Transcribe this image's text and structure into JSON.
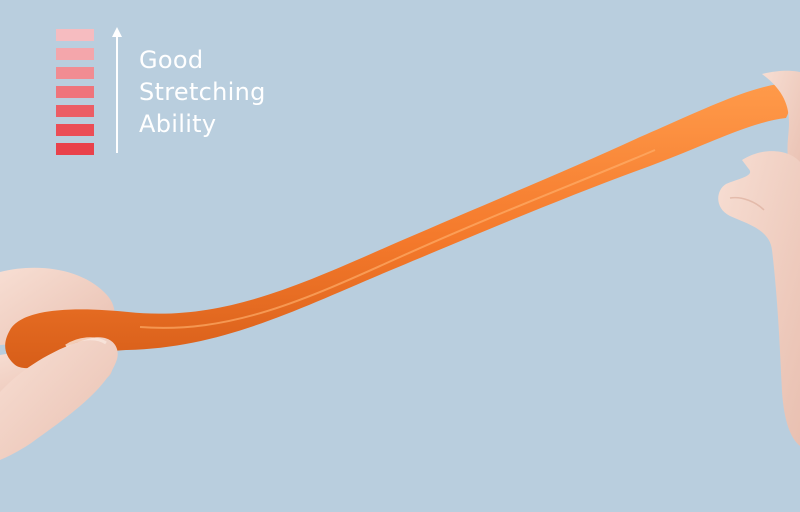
{
  "caption": {
    "lines": [
      "Good",
      "Stretching",
      "Ability"
    ]
  },
  "indicator": {
    "icon": "up-arrow-icon",
    "bar_colors": [
      "#f6bcc0",
      "#f4a6ab",
      "#f18c92",
      "#ef747b",
      "#ec5d65",
      "#eb4d56",
      "#e9414b"
    ]
  },
  "colors": {
    "background": "#b9cede",
    "band": "#f4792b",
    "skin": "#f3d3c6",
    "text": "#ffffff"
  }
}
